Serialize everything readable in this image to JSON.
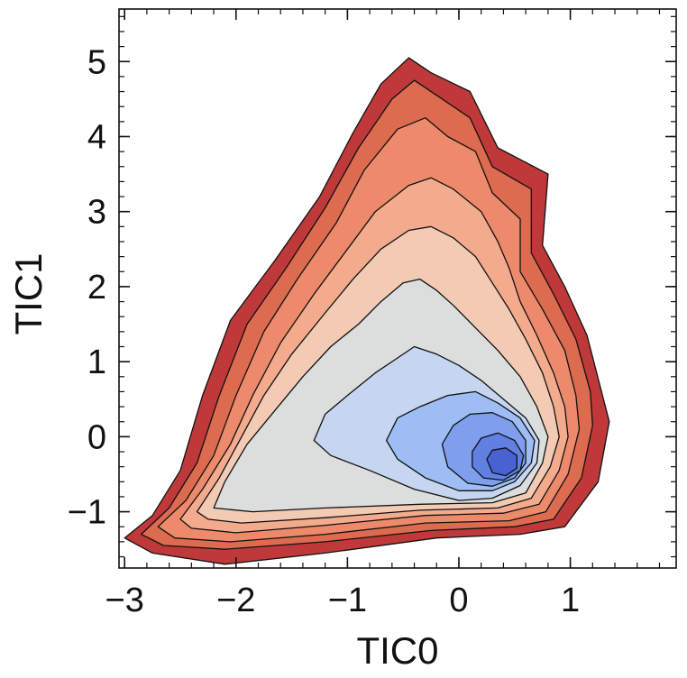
{
  "chart_data": {
    "type": "filled_contour",
    "title": "",
    "xlabel": "TIC0",
    "ylabel": "TIC1",
    "xlim": [
      -3.05,
      1.95
    ],
    "ylim": [
      -1.75,
      5.7
    ],
    "x_ticks": [
      {
        "value": -3,
        "label": "−3"
      },
      {
        "value": -2,
        "label": "−2"
      },
      {
        "value": -1,
        "label": "−1"
      },
      {
        "value": 0,
        "label": "0"
      },
      {
        "value": 1,
        "label": "1"
      }
    ],
    "y_ticks": [
      {
        "value": -1,
        "label": "−1"
      },
      {
        "value": 0,
        "label": "0"
      },
      {
        "value": 1,
        "label": "1"
      },
      {
        "value": 2,
        "label": "2"
      },
      {
        "value": 3,
        "label": "3"
      },
      {
        "value": 4,
        "label": "4"
      },
      {
        "value": 5,
        "label": "5"
      }
    ],
    "minor_tick_step": 0.2,
    "colormap": "coolwarm (reversed: dense = blue, sparse = red)",
    "minimum_center": {
      "x": 0.42,
      "y": -0.3
    },
    "levels": [
      {
        "name": "level-1",
        "color": "#c0393a",
        "points": [
          [
            -3.0,
            -1.35
          ],
          [
            -2.75,
            -1.05
          ],
          [
            -2.5,
            -0.45
          ],
          [
            -2.3,
            0.55
          ],
          [
            -2.05,
            1.55
          ],
          [
            -1.65,
            2.35
          ],
          [
            -1.25,
            3.2
          ],
          [
            -0.95,
            4.05
          ],
          [
            -0.7,
            4.7
          ],
          [
            -0.45,
            5.05
          ],
          [
            -0.25,
            4.85
          ],
          [
            0.1,
            4.6
          ],
          [
            0.35,
            3.85
          ],
          [
            0.8,
            3.5
          ],
          [
            0.75,
            2.55
          ],
          [
            0.95,
            2.0
          ],
          [
            1.15,
            1.35
          ],
          [
            1.28,
            0.6
          ],
          [
            1.35,
            0.2
          ],
          [
            1.25,
            -0.6
          ],
          [
            0.95,
            -1.2
          ],
          [
            0.55,
            -1.3
          ],
          [
            -0.2,
            -1.35
          ],
          [
            -1.2,
            -1.55
          ],
          [
            -2.1,
            -1.7
          ],
          [
            -2.75,
            -1.55
          ]
        ]
      },
      {
        "name": "level-2",
        "color": "#dd6b4f",
        "points": [
          [
            -2.85,
            -1.3
          ],
          [
            -2.6,
            -0.95
          ],
          [
            -2.35,
            -0.35
          ],
          [
            -2.15,
            0.55
          ],
          [
            -1.9,
            1.5
          ],
          [
            -1.55,
            2.25
          ],
          [
            -1.2,
            3.05
          ],
          [
            -0.9,
            3.85
          ],
          [
            -0.6,
            4.5
          ],
          [
            -0.4,
            4.75
          ],
          [
            -0.2,
            4.55
          ],
          [
            0.1,
            4.25
          ],
          [
            0.3,
            3.6
          ],
          [
            0.65,
            3.3
          ],
          [
            0.65,
            2.45
          ],
          [
            0.85,
            1.9
          ],
          [
            1.05,
            1.3
          ],
          [
            1.18,
            0.6
          ],
          [
            1.2,
            0.15
          ],
          [
            1.1,
            -0.55
          ],
          [
            0.85,
            -1.1
          ],
          [
            0.5,
            -1.2
          ],
          [
            -0.25,
            -1.25
          ],
          [
            -1.2,
            -1.4
          ],
          [
            -2.1,
            -1.5
          ],
          [
            -2.65,
            -1.45
          ]
        ]
      },
      {
        "name": "level-3",
        "color": "#ee8a6c",
        "points": [
          [
            -2.7,
            -1.2
          ],
          [
            -2.45,
            -0.85
          ],
          [
            -2.2,
            -0.25
          ],
          [
            -2.0,
            0.55
          ],
          [
            -1.75,
            1.4
          ],
          [
            -1.45,
            2.1
          ],
          [
            -1.1,
            2.85
          ],
          [
            -0.85,
            3.55
          ],
          [
            -0.55,
            4.1
          ],
          [
            -0.3,
            4.25
          ],
          [
            -0.1,
            4.0
          ],
          [
            0.15,
            3.8
          ],
          [
            0.3,
            3.25
          ],
          [
            0.55,
            2.9
          ],
          [
            0.55,
            2.2
          ],
          [
            0.75,
            1.7
          ],
          [
            0.95,
            1.15
          ],
          [
            1.05,
            0.55
          ],
          [
            1.08,
            0.1
          ],
          [
            0.98,
            -0.5
          ],
          [
            0.78,
            -1.0
          ],
          [
            0.45,
            -1.12
          ],
          [
            -0.3,
            -1.15
          ],
          [
            -1.2,
            -1.3
          ],
          [
            -2.05,
            -1.4
          ],
          [
            -2.55,
            -1.35
          ]
        ]
      },
      {
        "name": "level-4",
        "color": "#f4ab8d",
        "points": [
          [
            -2.5,
            -1.1
          ],
          [
            -2.3,
            -0.7
          ],
          [
            -2.05,
            -0.1
          ],
          [
            -1.85,
            0.55
          ],
          [
            -1.6,
            1.25
          ],
          [
            -1.3,
            1.9
          ],
          [
            -1.0,
            2.5
          ],
          [
            -0.75,
            3.0
          ],
          [
            -0.45,
            3.35
          ],
          [
            -0.25,
            3.45
          ],
          [
            -0.05,
            3.3
          ],
          [
            0.2,
            3.0
          ],
          [
            0.35,
            2.6
          ],
          [
            0.45,
            2.25
          ],
          [
            0.55,
            1.8
          ],
          [
            0.7,
            1.35
          ],
          [
            0.85,
            0.85
          ],
          [
            0.95,
            0.4
          ],
          [
            0.98,
            0.0
          ],
          [
            0.9,
            -0.45
          ],
          [
            0.72,
            -0.9
          ],
          [
            0.4,
            -1.02
          ],
          [
            -0.3,
            -1.05
          ],
          [
            -1.2,
            -1.18
          ],
          [
            -2.0,
            -1.28
          ],
          [
            -2.4,
            -1.22
          ]
        ]
      },
      {
        "name": "level-5",
        "color": "#f3cab3",
        "points": [
          [
            -2.35,
            -1.0
          ],
          [
            -2.15,
            -0.55
          ],
          [
            -1.95,
            0.0
          ],
          [
            -1.75,
            0.55
          ],
          [
            -1.5,
            1.1
          ],
          [
            -1.2,
            1.65
          ],
          [
            -0.95,
            2.1
          ],
          [
            -0.7,
            2.5
          ],
          [
            -0.45,
            2.75
          ],
          [
            -0.25,
            2.8
          ],
          [
            -0.05,
            2.65
          ],
          [
            0.15,
            2.4
          ],
          [
            0.3,
            2.05
          ],
          [
            0.45,
            1.7
          ],
          [
            0.6,
            1.3
          ],
          [
            0.75,
            0.85
          ],
          [
            0.85,
            0.4
          ],
          [
            0.9,
            0.0
          ],
          [
            0.82,
            -0.4
          ],
          [
            0.65,
            -0.82
          ],
          [
            0.35,
            -0.95
          ],
          [
            -0.35,
            -0.98
          ],
          [
            -1.2,
            -1.08
          ],
          [
            -1.95,
            -1.15
          ],
          [
            -2.25,
            -1.1
          ]
        ]
      },
      {
        "name": "level-6",
        "color": "#dcdddd",
        "points": [
          [
            -2.2,
            -0.95
          ],
          [
            -2.1,
            -0.6
          ],
          [
            -1.9,
            -0.1
          ],
          [
            -1.65,
            0.35
          ],
          [
            -1.4,
            0.8
          ],
          [
            -1.15,
            1.2
          ],
          [
            -0.9,
            1.5
          ],
          [
            -0.7,
            1.8
          ],
          [
            -0.5,
            2.05
          ],
          [
            -0.35,
            2.1
          ],
          [
            -0.2,
            1.95
          ],
          [
            -0.05,
            1.75
          ],
          [
            0.15,
            1.45
          ],
          [
            0.35,
            1.15
          ],
          [
            0.55,
            0.8
          ],
          [
            0.7,
            0.4
          ],
          [
            0.8,
            0.0
          ],
          [
            0.75,
            -0.35
          ],
          [
            0.6,
            -0.75
          ],
          [
            0.3,
            -0.88
          ],
          [
            -0.35,
            -0.9
          ],
          [
            -1.2,
            -0.95
          ],
          [
            -1.85,
            -1.0
          ]
        ]
      },
      {
        "name": "level-7",
        "color": "#c6d6f0",
        "points": [
          [
            -1.3,
            -0.05
          ],
          [
            -1.2,
            0.3
          ],
          [
            -1.0,
            0.55
          ],
          [
            -0.75,
            0.85
          ],
          [
            -0.55,
            1.05
          ],
          [
            -0.4,
            1.2
          ],
          [
            -0.2,
            1.1
          ],
          [
            0.0,
            0.95
          ],
          [
            0.2,
            0.75
          ],
          [
            0.4,
            0.5
          ],
          [
            0.6,
            0.25
          ],
          [
            0.72,
            -0.05
          ],
          [
            0.7,
            -0.35
          ],
          [
            0.55,
            -0.65
          ],
          [
            0.3,
            -0.82
          ],
          [
            0.0,
            -0.85
          ],
          [
            -0.4,
            -0.7
          ],
          [
            -0.8,
            -0.45
          ],
          [
            -1.15,
            -0.25
          ]
        ]
      },
      {
        "name": "level-8",
        "color": "#9dbdf4",
        "points": [
          [
            -0.65,
            -0.05
          ],
          [
            -0.55,
            0.25
          ],
          [
            -0.35,
            0.4
          ],
          [
            -0.1,
            0.55
          ],
          [
            0.15,
            0.6
          ],
          [
            0.35,
            0.45
          ],
          [
            0.55,
            0.25
          ],
          [
            0.68,
            -0.05
          ],
          [
            0.65,
            -0.35
          ],
          [
            0.5,
            -0.6
          ],
          [
            0.3,
            -0.72
          ],
          [
            0.0,
            -0.72
          ],
          [
            -0.3,
            -0.55
          ],
          [
            -0.55,
            -0.3
          ]
        ]
      },
      {
        "name": "level-9",
        "color": "#7f9eee",
        "points": [
          [
            -0.15,
            -0.1
          ],
          [
            -0.05,
            0.15
          ],
          [
            0.1,
            0.3
          ],
          [
            0.3,
            0.32
          ],
          [
            0.48,
            0.2
          ],
          [
            0.6,
            -0.05
          ],
          [
            0.6,
            -0.35
          ],
          [
            0.5,
            -0.55
          ],
          [
            0.3,
            -0.66
          ],
          [
            0.08,
            -0.62
          ],
          [
            -0.1,
            -0.4
          ]
        ]
      },
      {
        "name": "level-10",
        "color": "#6080e2",
        "points": [
          [
            0.12,
            -0.2
          ],
          [
            0.2,
            -0.02
          ],
          [
            0.35,
            0.05
          ],
          [
            0.5,
            -0.05
          ],
          [
            0.58,
            -0.25
          ],
          [
            0.55,
            -0.45
          ],
          [
            0.4,
            -0.58
          ],
          [
            0.22,
            -0.55
          ],
          [
            0.12,
            -0.4
          ]
        ]
      },
      {
        "name": "level-11",
        "color": "#4962d2",
        "points": [
          [
            0.25,
            -0.3
          ],
          [
            0.3,
            -0.18
          ],
          [
            0.42,
            -0.15
          ],
          [
            0.52,
            -0.25
          ],
          [
            0.52,
            -0.42
          ],
          [
            0.42,
            -0.52
          ],
          [
            0.3,
            -0.48
          ]
        ]
      }
    ]
  }
}
